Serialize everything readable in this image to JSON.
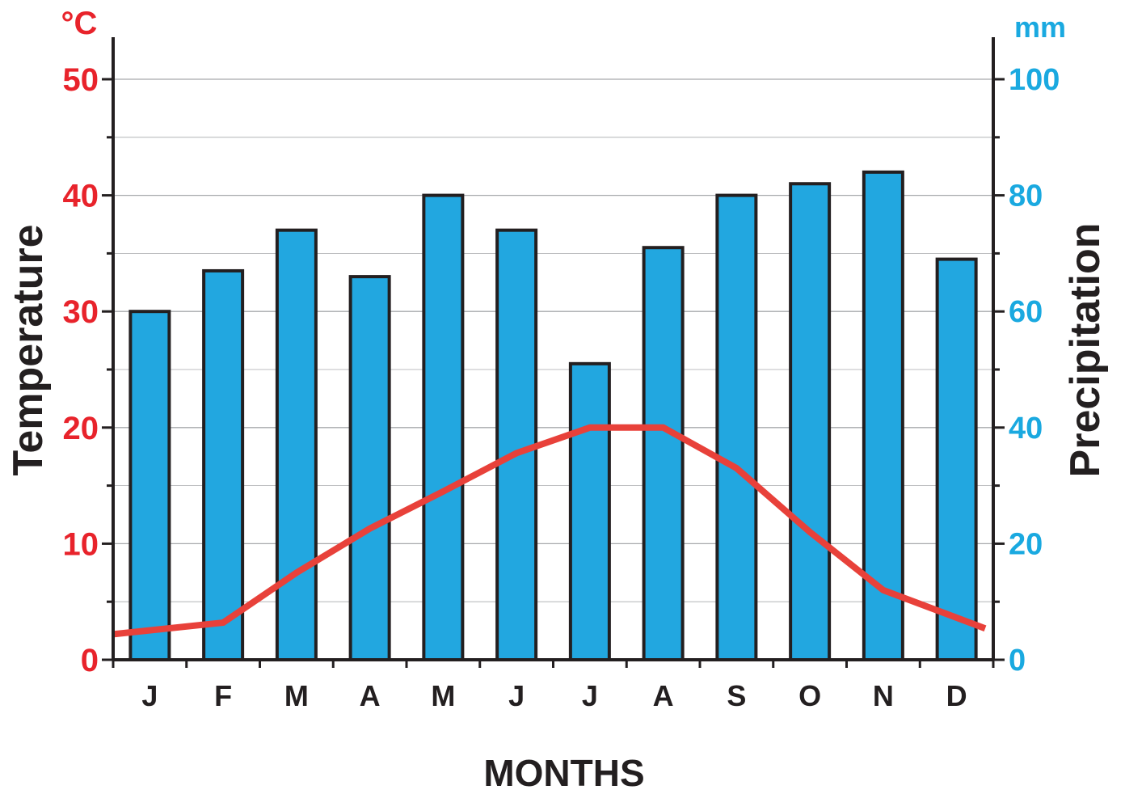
{
  "chart_data": {
    "type": "bar",
    "xlabel": "MONTHS",
    "categories": [
      "J",
      "F",
      "M",
      "A",
      "M",
      "J",
      "J",
      "A",
      "S",
      "O",
      "N",
      "D"
    ],
    "left_axis": {
      "label": "Temperature",
      "unit": "°C",
      "ticks": [
        "0",
        "10",
        "20",
        "30",
        "40",
        "50"
      ],
      "range": [
        0,
        50
      ],
      "color": "#e8232b"
    },
    "right_axis": {
      "label": "Precipitation",
      "unit": "mm",
      "ticks": [
        "0",
        "20",
        "40",
        "60",
        "80",
        "100"
      ],
      "range": [
        0,
        100
      ],
      "color": "#1aa9e0"
    },
    "series": [
      {
        "kind": "bar",
        "axis": "right",
        "color": "#22a7e0",
        "values": [
          60,
          67,
          74,
          66,
          80,
          74,
          51,
          71,
          80,
          82,
          84,
          69
        ]
      },
      {
        "kind": "line",
        "axis": "left",
        "color": "#e8413a",
        "values": [
          2.2,
          3.2,
          7.5,
          11.3,
          14.5,
          17.8,
          20,
          20,
          16.5,
          11,
          6,
          2.7
        ]
      }
    ],
    "grid": true
  }
}
